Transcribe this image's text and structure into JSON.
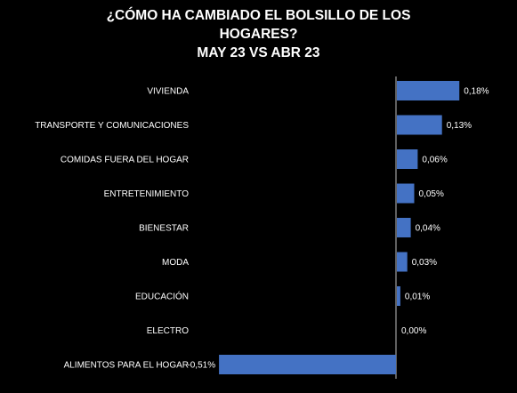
{
  "title_lines": [
    "¿CÓMO HA CAMBIADO EL BOLSILLO DE LOS",
    "HOGARES?",
    "MAY 23 VS ABR 23"
  ],
  "colors": {
    "background": "#000000",
    "bar": "#4472C4",
    "text": "#ffffff",
    "axis": "#bfbfbf"
  },
  "chart_data": {
    "type": "bar",
    "orientation": "horizontal",
    "title": "¿CÓMO HA CAMBIADO EL BOLSILLO DE LOS HOGARES? MAY 23 VS ABR 23",
    "categories": [
      "VIVIENDA",
      "TRANSPORTE Y COMUNICACIONES",
      "COMIDAS FUERA DEL HOGAR",
      "ENTRETENIMIENTO",
      "BIENESTAR",
      "MODA",
      "EDUCACIÓN",
      "ELECTRO",
      "ALIMENTOS PARA EL HOGAR"
    ],
    "values": [
      0.18,
      0.13,
      0.06,
      0.05,
      0.04,
      0.03,
      0.01,
      0.0,
      -0.51
    ],
    "data_labels": [
      "0,18%",
      "0,13%",
      "0,06%",
      "0,05%",
      "0,04%",
      "0,03%",
      "0,01%",
      "0,00%",
      "-0,51%"
    ],
    "unit": "%",
    "grid": false,
    "legend": "none"
  }
}
